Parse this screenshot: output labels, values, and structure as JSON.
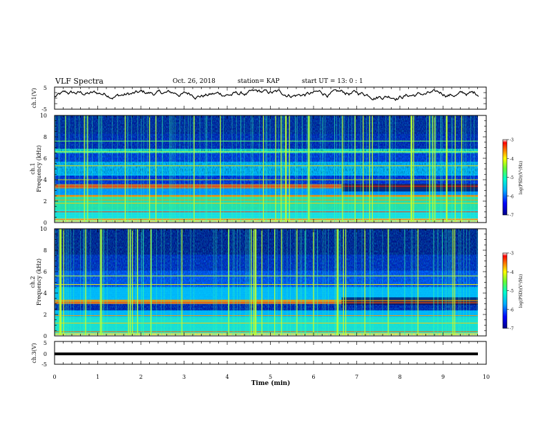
{
  "header": {
    "title": "VLF Spectra",
    "date": "Oct. 26, 2018",
    "station": "station= KAP",
    "start": "start  UT =   13: 0  : 1"
  },
  "chart_data": [
    {
      "type": "line",
      "panel": "ch1",
      "ylabel": "ch.1(V)",
      "ylim": [
        -5,
        5
      ],
      "yticks": [
        "5",
        "-5"
      ],
      "x_range": [
        0,
        9.83
      ],
      "series": [
        {
          "color": "#000000"
        }
      ],
      "note_values": "waveform approx. oscillating between -2.5 and 4 V"
    },
    {
      "type": "heatmap",
      "panel": "ch1-spectrogram",
      "ylabel": [
        "ch.1",
        "Frequency (kHz)"
      ],
      "ylim": [
        0,
        10
      ],
      "yticks": [
        "0",
        "2",
        "4",
        "6",
        "8",
        "10"
      ],
      "colorbar": {
        "label": "log(PSD)(V²/Hz)",
        "range": [
          -7,
          -3
        ],
        "ticks": [
          "-3",
          "-4",
          "-5",
          "-6",
          "-7"
        ]
      },
      "change_time_min": 6.65
    },
    {
      "type": "heatmap",
      "panel": "ch2-spectrogram",
      "ylabel": [
        "ch.2",
        "Frequency (kHz)"
      ],
      "ylim": [
        0,
        10
      ],
      "yticks": [
        "0",
        "2",
        "4",
        "6",
        "8",
        "10"
      ],
      "colorbar": {
        "label": "log(PSD)(V²/Hz)",
        "range": [
          -7,
          -3
        ],
        "ticks": [
          "-3",
          "-4",
          "-5",
          "-6",
          "-7"
        ]
      },
      "change_time_min": 6.65
    },
    {
      "type": "line",
      "panel": "ch3",
      "ylabel": "ch.3(V)",
      "ylim": [
        -5,
        5
      ],
      "yticks": [
        "5",
        "0",
        "-5"
      ],
      "series": [
        {
          "values_constant": -1.5,
          "color": "#000000"
        }
      ]
    }
  ],
  "xaxis": {
    "label": "Time  (min)",
    "ticks": [
      "0",
      "1",
      "2",
      "3",
      "4",
      "5",
      "6",
      "7",
      "8",
      "9",
      "10"
    ],
    "range": [
      0,
      10
    ]
  }
}
